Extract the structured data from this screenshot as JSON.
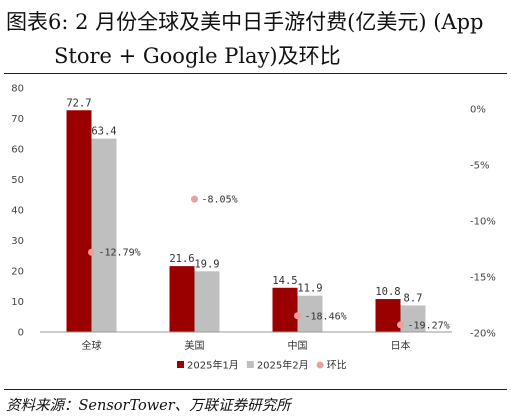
{
  "header": {
    "title_line1": "图表6:    2 月份全球及美中日手游付费(亿美元) (App",
    "title_line2": "Store + Google Play)及环比"
  },
  "source": "资料来源：SensorTower、万联证券研究所",
  "chart_data": {
    "type": "bar",
    "title": "",
    "categories": [
      "全球",
      "美国",
      "中国",
      "日本"
    ],
    "series": [
      {
        "name": "2025年1月",
        "type": "bar",
        "axis": "left",
        "color": "#9B0000",
        "values": [
          72.7,
          21.6,
          14.5,
          10.8
        ],
        "labels": [
          "72.7",
          "21.6",
          "14.5",
          "10.8"
        ]
      },
      {
        "name": "2025年2月",
        "type": "bar",
        "axis": "left",
        "color": "#BFBFBF",
        "values": [
          63.4,
          19.9,
          11.9,
          8.7
        ],
        "labels": [
          "63.4",
          "19.9",
          "11.9",
          "8.7"
        ]
      },
      {
        "name": "环比",
        "type": "scatter",
        "axis": "right",
        "color": "#E8A0A0",
        "values": [
          -12.79,
          -8.05,
          -18.46,
          -19.27
        ],
        "labels": [
          "-12.79%",
          "-8.05%",
          "-18.46%",
          "-19.27%"
        ]
      }
    ],
    "left_axis": {
      "min": 0,
      "max": 80,
      "ticks": [
        "0",
        "10",
        "20",
        "30",
        "40",
        "50",
        "60",
        "70",
        "80"
      ]
    },
    "right_axis": {
      "min": -20,
      "max": 2,
      "ticks": [
        "0%",
        "-5%",
        "-10%",
        "-15%",
        "-20%"
      ],
      "tick_values": [
        0,
        -5,
        -10,
        -15,
        -20
      ]
    },
    "grid": false,
    "legend_position": "bottom"
  }
}
